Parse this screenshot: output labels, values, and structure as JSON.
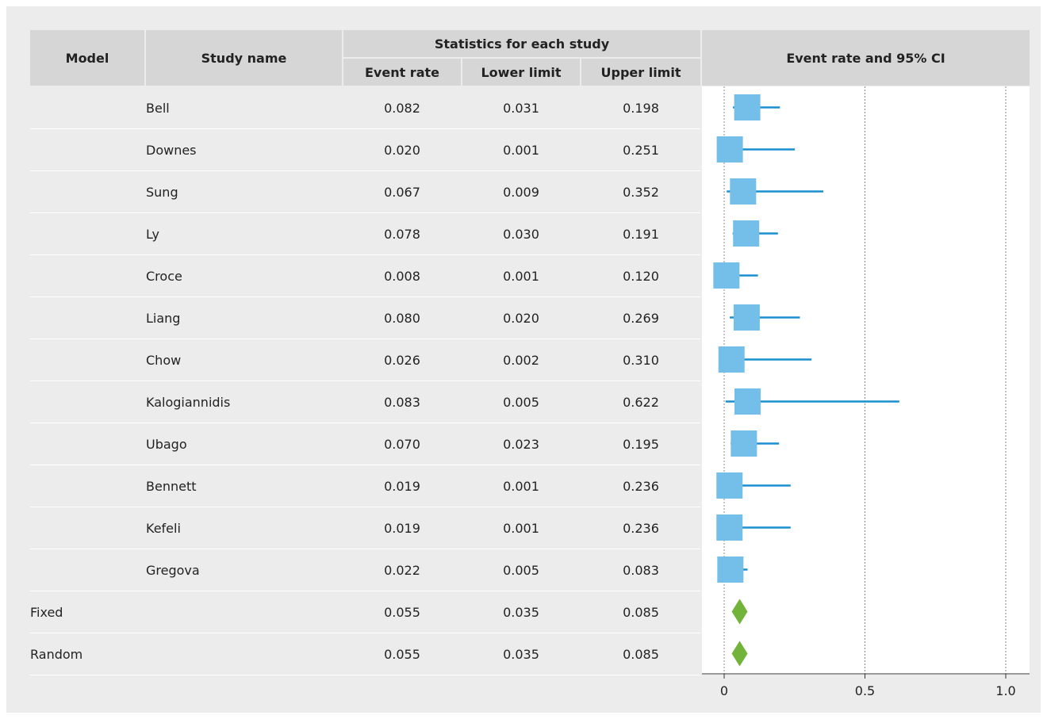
{
  "header": {
    "model": "Model",
    "study_name": "Study name",
    "statistics_group": "Statistics for each study",
    "event_rate": "Event rate",
    "lower_limit": "Lower limit",
    "upper_limit": "Upper limit",
    "plot_title": "Event rate and 95% CI"
  },
  "rows": [
    {
      "model": "",
      "study": "Bell",
      "er": "0.082",
      "ll": "0.031",
      "ul": "0.198"
    },
    {
      "model": "",
      "study": "Downes",
      "er": "0.020",
      "ll": "0.001",
      "ul": "0.251"
    },
    {
      "model": "",
      "study": "Sung",
      "er": "0.067",
      "ll": "0.009",
      "ul": "0.352"
    },
    {
      "model": "",
      "study": "Ly",
      "er": "0.078",
      "ll": "0.030",
      "ul": "0.191"
    },
    {
      "model": "",
      "study": "Croce",
      "er": "0.008",
      "ll": "0.001",
      "ul": "0.120"
    },
    {
      "model": "",
      "study": "Liang",
      "er": "0.080",
      "ll": "0.020",
      "ul": "0.269"
    },
    {
      "model": "",
      "study": "Chow",
      "er": "0.026",
      "ll": "0.002",
      "ul": "0.310"
    },
    {
      "model": "",
      "study": "Kalogiannidis",
      "er": "0.083",
      "ll": "0.005",
      "ul": "0.622"
    },
    {
      "model": "",
      "study": "Ubago",
      "er": "0.070",
      "ll": "0.023",
      "ul": "0.195"
    },
    {
      "model": "",
      "study": "Bennett",
      "er": "0.019",
      "ll": "0.001",
      "ul": "0.236"
    },
    {
      "model": "",
      "study": "Kefeli",
      "er": "0.019",
      "ll": "0.001",
      "ul": "0.236"
    },
    {
      "model": "",
      "study": "Gregova",
      "er": "0.022",
      "ll": "0.005",
      "ul": "0.083"
    },
    {
      "model": "Fixed",
      "study": "",
      "er": "0.055",
      "ll": "0.035",
      "ul": "0.085"
    },
    {
      "model": "Random",
      "study": "",
      "er": "0.055",
      "ll": "0.035",
      "ul": "0.085"
    }
  ],
  "chart_data": {
    "type": "forest",
    "title": "Event rate and 95% CI",
    "xlim": [
      0,
      1.0
    ],
    "ticks": [
      "0",
      "0.5",
      "1.0"
    ],
    "tick_values": [
      0,
      0.5,
      1.0
    ],
    "reference_lines": [
      0,
      0.5,
      1.0
    ],
    "studies": [
      {
        "name": "Bell",
        "x": 0.082,
        "lower": 0.031,
        "upper": 0.198
      },
      {
        "name": "Downes",
        "x": 0.02,
        "lower": 0.001,
        "upper": 0.251
      },
      {
        "name": "Sung",
        "x": 0.067,
        "lower": 0.009,
        "upper": 0.352
      },
      {
        "name": "Ly",
        "x": 0.078,
        "lower": 0.03,
        "upper": 0.191
      },
      {
        "name": "Croce",
        "x": 0.008,
        "lower": 0.001,
        "upper": 0.12
      },
      {
        "name": "Liang",
        "x": 0.08,
        "lower": 0.02,
        "upper": 0.269
      },
      {
        "name": "Chow",
        "x": 0.026,
        "lower": 0.002,
        "upper": 0.31
      },
      {
        "name": "Kalogiannidis",
        "x": 0.083,
        "lower": 0.005,
        "upper": 0.622
      },
      {
        "name": "Ubago",
        "x": 0.07,
        "lower": 0.023,
        "upper": 0.195
      },
      {
        "name": "Bennett",
        "x": 0.019,
        "lower": 0.001,
        "upper": 0.236
      },
      {
        "name": "Kefeli",
        "x": 0.019,
        "lower": 0.001,
        "upper": 0.236
      },
      {
        "name": "Gregova",
        "x": 0.022,
        "lower": 0.005,
        "upper": 0.083
      }
    ],
    "summaries": [
      {
        "name": "Fixed",
        "x": 0.055,
        "lower": 0.035,
        "upper": 0.085
      },
      {
        "name": "Random",
        "x": 0.055,
        "lower": 0.035,
        "upper": 0.085
      }
    ],
    "colors": {
      "study_box": "#74bfe9",
      "ci_line": "#1a8fd0",
      "summary_diamond": "#72b43a"
    }
  }
}
